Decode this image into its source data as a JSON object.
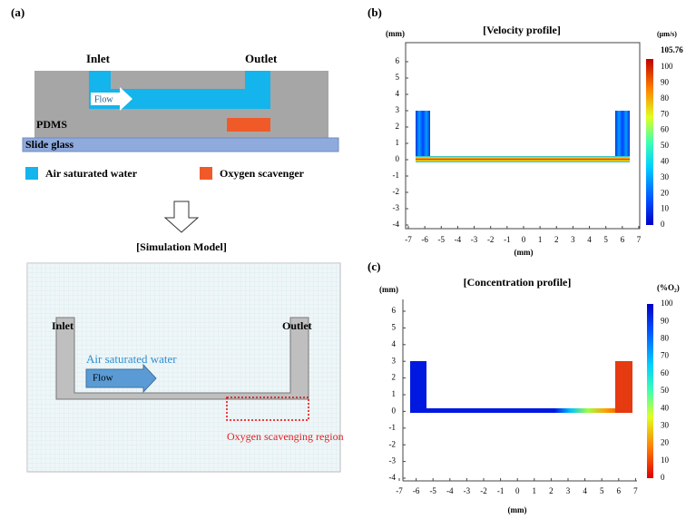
{
  "panel_a": {
    "label": "(a)",
    "inlet": "Inlet",
    "outlet": "Outlet",
    "flow": "Flow",
    "pdms": "PDMS",
    "slide_glass": "Slide glass",
    "legend": [
      "Air saturated water",
      "Oxygen scavenger"
    ]
  },
  "simulation_model": {
    "title": "[Simulation Model]",
    "inlet": "Inlet",
    "outlet": "Outlet",
    "water": "Air saturated water",
    "flow": "Flow",
    "region": "Oxygen scavenging region"
  },
  "panel_b": {
    "label": "(b)",
    "title": "[Velocity profile]",
    "y_unit": "(mm)",
    "x_unit": "(mm)",
    "yticks": [
      6,
      5,
      4,
      3,
      2,
      1,
      0,
      -1,
      -2,
      -3,
      -4
    ],
    "xticks": [
      -7,
      -6,
      -5,
      -4,
      -3,
      -2,
      -1,
      0,
      1,
      2,
      3,
      4,
      5,
      6,
      7
    ],
    "colorbar_unit": "(µm/s)",
    "colorbar_max": 105.76,
    "colorbar_ticks": [
      100,
      90,
      80,
      70,
      60,
      50,
      40,
      30,
      20,
      10,
      0
    ]
  },
  "panel_c": {
    "label": "(c)",
    "title": "[Concentration profile]",
    "y_unit": "(mm)",
    "x_unit": "(mm)",
    "yticks": [
      6,
      5,
      4,
      3,
      2,
      1,
      0,
      -1,
      -2,
      -3,
      -4
    ],
    "xticks": [
      -7,
      -6,
      -5,
      -4,
      -3,
      -2,
      -1,
      0,
      1,
      2,
      3,
      4,
      5,
      6,
      7
    ],
    "colorbar_unit": "(%O₂)",
    "colorbar_ticks": [
      100,
      90,
      80,
      70,
      60,
      50,
      40,
      30,
      20,
      10,
      0
    ]
  }
}
